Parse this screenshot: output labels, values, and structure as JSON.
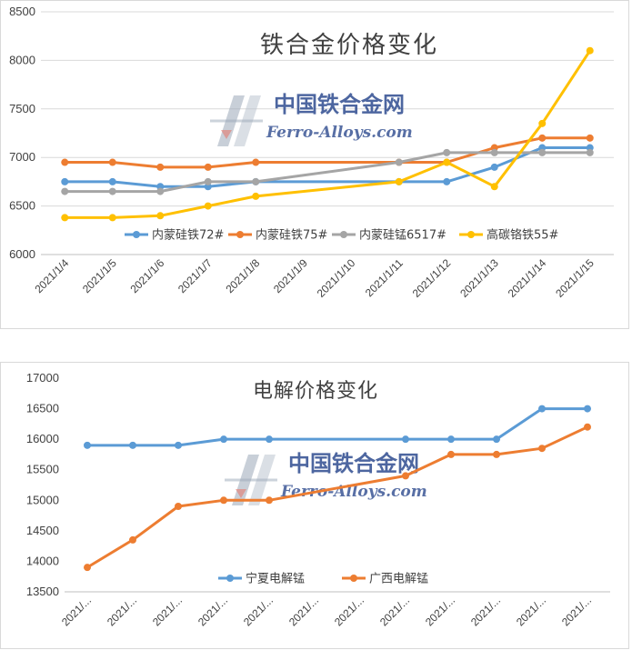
{
  "watermark": {
    "cn": "中国铁合金网",
    "en": "Ferro-Alloys.com",
    "logo": "ferro-alloys-logo"
  },
  "chart_data": [
    {
      "type": "line",
      "title": "铁合金价格变化",
      "x": [
        "2021/1/4",
        "2021/1/5",
        "2021/1/6",
        "2021/1/7",
        "2021/1/8",
        "2021/1/9",
        "2021/1/10",
        "2021/1/11",
        "2021/1/12",
        "2021/1/13",
        "2021/1/14",
        "2021/1/15"
      ],
      "ylim": [
        6000,
        8500
      ],
      "yticks": [
        6000,
        6500,
        7000,
        7500,
        8000,
        8500
      ],
      "grid": true,
      "legend": "bottom-center",
      "series": [
        {
          "name": "内蒙硅铁72#",
          "color": "#5b9bd5",
          "values": [
            6750,
            6750,
            6700,
            6700,
            6750,
            null,
            null,
            6750,
            6750,
            6900,
            7100,
            7100
          ]
        },
        {
          "name": "内蒙硅铁75#",
          "color": "#ed7d31",
          "values": [
            6950,
            6950,
            6900,
            6900,
            6950,
            null,
            null,
            6950,
            6950,
            7100,
            7200,
            7200
          ]
        },
        {
          "name": "内蒙硅锰6517#",
          "color": "#a5a5a5",
          "values": [
            6650,
            6650,
            6650,
            6750,
            6750,
            null,
            null,
            6950,
            7050,
            7050,
            7050,
            7050
          ]
        },
        {
          "name": "高碳铬铁55#",
          "color": "#ffc000",
          "values": [
            6380,
            6380,
            6400,
            6500,
            6600,
            null,
            null,
            6750,
            6950,
            6700,
            7350,
            8100
          ]
        }
      ]
    },
    {
      "type": "line",
      "title": "电解价格变化",
      "x": [
        "2021/...",
        "2021/...",
        "2021/...",
        "2021/...",
        "2021/...",
        "2021/...",
        "2021/...",
        "2021/...",
        "2021/...",
        "2021/...",
        "2021/...",
        "2021/..."
      ],
      "ylim": [
        13500,
        17000
      ],
      "yticks": [
        13500,
        14000,
        14500,
        15000,
        15500,
        16000,
        16500,
        17000
      ],
      "grid": false,
      "legend": "bottom-center",
      "series": [
        {
          "name": "宁夏电解锰",
          "color": "#5b9bd5",
          "values": [
            15900,
            15900,
            15900,
            16000,
            16000,
            null,
            null,
            16000,
            16000,
            16000,
            16500,
            16500
          ]
        },
        {
          "name": "广西电解锰",
          "color": "#ed7d31",
          "values": [
            13900,
            14350,
            14900,
            15000,
            15000,
            null,
            null,
            15400,
            15750,
            15750,
            15850,
            16200
          ]
        }
      ]
    }
  ]
}
